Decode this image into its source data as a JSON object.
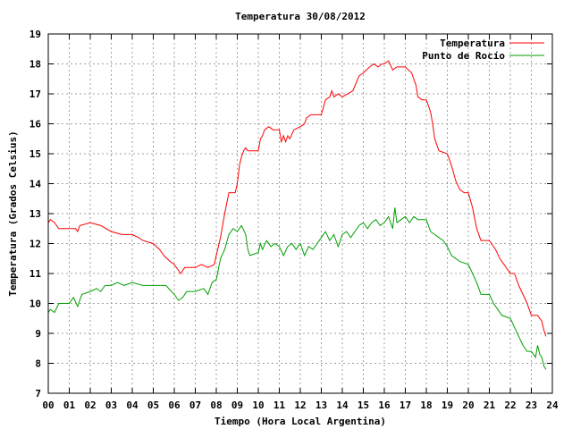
{
  "chart_data": {
    "type": "line",
    "title": "Temperatura 30/08/2012",
    "xlabel": "Tiempo (Hora Local Argentina)",
    "ylabel": "Temperatura (Grados Celsius)",
    "xlim": [
      0,
      24
    ],
    "ylim": [
      7,
      19
    ],
    "grid": true,
    "legend_position": "top-right",
    "x_ticks": [
      {
        "v": 0,
        "label": "00"
      },
      {
        "v": 1,
        "label": "01"
      },
      {
        "v": 2,
        "label": "02"
      },
      {
        "v": 3,
        "label": "03"
      },
      {
        "v": 4,
        "label": "04"
      },
      {
        "v": 5,
        "label": "05"
      },
      {
        "v": 6,
        "label": "06"
      },
      {
        "v": 7,
        "label": "07"
      },
      {
        "v": 8,
        "label": "08"
      },
      {
        "v": 9,
        "label": "09"
      },
      {
        "v": 10,
        "label": "10"
      },
      {
        "v": 11,
        "label": "11"
      },
      {
        "v": 12,
        "label": "12"
      },
      {
        "v": 13,
        "label": "13"
      },
      {
        "v": 14,
        "label": "14"
      },
      {
        "v": 15,
        "label": "15"
      },
      {
        "v": 16,
        "label": "16"
      },
      {
        "v": 17,
        "label": "17"
      },
      {
        "v": 18,
        "label": "18"
      },
      {
        "v": 19,
        "label": "19"
      },
      {
        "v": 20,
        "label": "20"
      },
      {
        "v": 21,
        "label": "21"
      },
      {
        "v": 22,
        "label": "22"
      },
      {
        "v": 23,
        "label": "23"
      },
      {
        "v": 24,
        "label": "24"
      }
    ],
    "y_ticks": [
      {
        "v": 7,
        "label": "7"
      },
      {
        "v": 8,
        "label": "8"
      },
      {
        "v": 9,
        "label": "9"
      },
      {
        "v": 10,
        "label": "10"
      },
      {
        "v": 11,
        "label": "11"
      },
      {
        "v": 12,
        "label": "12"
      },
      {
        "v": 13,
        "label": "13"
      },
      {
        "v": 14,
        "label": "14"
      },
      {
        "v": 15,
        "label": "15"
      },
      {
        "v": 16,
        "label": "16"
      },
      {
        "v": 17,
        "label": "17"
      },
      {
        "v": 18,
        "label": "18"
      },
      {
        "v": 19,
        "label": "19"
      }
    ],
    "series": [
      {
        "name": "Temperatura",
        "color": "#ff0000",
        "points": [
          [
            0.0,
            12.7
          ],
          [
            0.1,
            12.8
          ],
          [
            0.3,
            12.7
          ],
          [
            0.5,
            12.5
          ],
          [
            1.0,
            12.5
          ],
          [
            1.3,
            12.5
          ],
          [
            1.4,
            12.4
          ],
          [
            1.5,
            12.6
          ],
          [
            2.0,
            12.7
          ],
          [
            2.5,
            12.6
          ],
          [
            3.0,
            12.4
          ],
          [
            3.5,
            12.3
          ],
          [
            4.0,
            12.3
          ],
          [
            4.3,
            12.2
          ],
          [
            4.5,
            12.1
          ],
          [
            5.0,
            12.0
          ],
          [
            5.3,
            11.8
          ],
          [
            5.5,
            11.6
          ],
          [
            5.8,
            11.4
          ],
          [
            6.0,
            11.3
          ],
          [
            6.2,
            11.1
          ],
          [
            6.3,
            11.0
          ],
          [
            6.5,
            11.2
          ],
          [
            7.0,
            11.2
          ],
          [
            7.3,
            11.3
          ],
          [
            7.6,
            11.2
          ],
          [
            7.9,
            11.3
          ],
          [
            8.0,
            11.6
          ],
          [
            8.2,
            12.2
          ],
          [
            8.4,
            13.0
          ],
          [
            8.6,
            13.7
          ],
          [
            8.9,
            13.7
          ],
          [
            9.0,
            14.0
          ],
          [
            9.1,
            14.6
          ],
          [
            9.2,
            14.9
          ],
          [
            9.3,
            15.1
          ],
          [
            9.4,
            15.2
          ],
          [
            9.5,
            15.1
          ],
          [
            10.0,
            15.1
          ],
          [
            10.1,
            15.5
          ],
          [
            10.2,
            15.6
          ],
          [
            10.3,
            15.8
          ],
          [
            10.5,
            15.9
          ],
          [
            10.7,
            15.8
          ],
          [
            11.0,
            15.8
          ],
          [
            11.1,
            15.4
          ],
          [
            11.2,
            15.6
          ],
          [
            11.3,
            15.4
          ],
          [
            11.4,
            15.6
          ],
          [
            11.5,
            15.5
          ],
          [
            11.7,
            15.8
          ],
          [
            12.0,
            15.9
          ],
          [
            12.2,
            16.0
          ],
          [
            12.3,
            16.2
          ],
          [
            12.5,
            16.3
          ],
          [
            13.0,
            16.3
          ],
          [
            13.2,
            16.8
          ],
          [
            13.4,
            16.9
          ],
          [
            13.5,
            17.1
          ],
          [
            13.6,
            16.9
          ],
          [
            13.8,
            17.0
          ],
          [
            14.0,
            16.9
          ],
          [
            14.5,
            17.1
          ],
          [
            14.8,
            17.6
          ],
          [
            15.0,
            17.7
          ],
          [
            15.3,
            17.9
          ],
          [
            15.5,
            18.0
          ],
          [
            15.7,
            17.9
          ],
          [
            15.9,
            18.0
          ],
          [
            16.0,
            18.0
          ],
          [
            16.2,
            18.1
          ],
          [
            16.4,
            17.8
          ],
          [
            16.6,
            17.9
          ],
          [
            17.0,
            17.9
          ],
          [
            17.3,
            17.7
          ],
          [
            17.5,
            17.3
          ],
          [
            17.6,
            16.9
          ],
          [
            17.8,
            16.8
          ],
          [
            18.0,
            16.8
          ],
          [
            18.2,
            16.4
          ],
          [
            18.3,
            16.0
          ],
          [
            18.4,
            15.5
          ],
          [
            18.6,
            15.1
          ],
          [
            19.0,
            15.0
          ],
          [
            19.2,
            14.6
          ],
          [
            19.4,
            14.1
          ],
          [
            19.6,
            13.8
          ],
          [
            19.8,
            13.7
          ],
          [
            20.0,
            13.7
          ],
          [
            20.2,
            13.2
          ],
          [
            20.4,
            12.5
          ],
          [
            20.6,
            12.1
          ],
          [
            21.0,
            12.1
          ],
          [
            21.3,
            11.8
          ],
          [
            21.5,
            11.5
          ],
          [
            21.7,
            11.3
          ],
          [
            22.0,
            11.0
          ],
          [
            22.2,
            11.0
          ],
          [
            22.4,
            10.6
          ],
          [
            22.6,
            10.3
          ],
          [
            22.8,
            10.0
          ],
          [
            23.0,
            9.6
          ],
          [
            23.3,
            9.6
          ],
          [
            23.5,
            9.4
          ],
          [
            23.6,
            9.1
          ],
          [
            23.7,
            8.9
          ]
        ]
      },
      {
        "name": "Punto de Rocío",
        "color": "#00a000",
        "points": [
          [
            0.0,
            9.7
          ],
          [
            0.1,
            9.8
          ],
          [
            0.3,
            9.7
          ],
          [
            0.5,
            10.0
          ],
          [
            1.0,
            10.0
          ],
          [
            1.2,
            10.2
          ],
          [
            1.4,
            9.9
          ],
          [
            1.6,
            10.3
          ],
          [
            2.0,
            10.4
          ],
          [
            2.3,
            10.5
          ],
          [
            2.5,
            10.4
          ],
          [
            2.7,
            10.6
          ],
          [
            3.0,
            10.6
          ],
          [
            3.3,
            10.7
          ],
          [
            3.6,
            10.6
          ],
          [
            4.0,
            10.7
          ],
          [
            4.5,
            10.6
          ],
          [
            5.0,
            10.6
          ],
          [
            5.6,
            10.6
          ],
          [
            6.0,
            10.3
          ],
          [
            6.2,
            10.1
          ],
          [
            6.4,
            10.2
          ],
          [
            6.6,
            10.4
          ],
          [
            7.0,
            10.4
          ],
          [
            7.4,
            10.5
          ],
          [
            7.6,
            10.3
          ],
          [
            7.8,
            10.7
          ],
          [
            8.0,
            10.8
          ],
          [
            8.2,
            11.5
          ],
          [
            8.4,
            11.8
          ],
          [
            8.6,
            12.3
          ],
          [
            8.8,
            12.5
          ],
          [
            9.0,
            12.4
          ],
          [
            9.2,
            12.6
          ],
          [
            9.4,
            12.3
          ],
          [
            9.5,
            11.8
          ],
          [
            9.6,
            11.6
          ],
          [
            10.0,
            11.7
          ],
          [
            10.1,
            12.0
          ],
          [
            10.2,
            11.8
          ],
          [
            10.4,
            12.1
          ],
          [
            10.6,
            11.9
          ],
          [
            10.8,
            12.0
          ],
          [
            11.0,
            11.9
          ],
          [
            11.2,
            11.6
          ],
          [
            11.4,
            11.9
          ],
          [
            11.6,
            12.0
          ],
          [
            11.8,
            11.8
          ],
          [
            12.0,
            12.0
          ],
          [
            12.2,
            11.6
          ],
          [
            12.4,
            11.9
          ],
          [
            12.6,
            11.8
          ],
          [
            12.8,
            12.0
          ],
          [
            13.0,
            12.2
          ],
          [
            13.2,
            12.4
          ],
          [
            13.4,
            12.1
          ],
          [
            13.6,
            12.3
          ],
          [
            13.8,
            11.9
          ],
          [
            14.0,
            12.3
          ],
          [
            14.2,
            12.4
          ],
          [
            14.4,
            12.2
          ],
          [
            14.6,
            12.4
          ],
          [
            14.8,
            12.6
          ],
          [
            15.0,
            12.7
          ],
          [
            15.2,
            12.5
          ],
          [
            15.4,
            12.7
          ],
          [
            15.6,
            12.8
          ],
          [
            15.8,
            12.6
          ],
          [
            16.0,
            12.7
          ],
          [
            16.2,
            12.9
          ],
          [
            16.4,
            12.5
          ],
          [
            16.5,
            13.2
          ],
          [
            16.6,
            12.7
          ],
          [
            16.8,
            12.8
          ],
          [
            17.0,
            12.9
          ],
          [
            17.2,
            12.7
          ],
          [
            17.4,
            12.9
          ],
          [
            17.6,
            12.8
          ],
          [
            18.0,
            12.8
          ],
          [
            18.2,
            12.4
          ],
          [
            18.4,
            12.3
          ],
          [
            18.6,
            12.2
          ],
          [
            18.8,
            12.1
          ],
          [
            19.0,
            11.9
          ],
          [
            19.2,
            11.6
          ],
          [
            19.4,
            11.5
          ],
          [
            19.6,
            11.4
          ],
          [
            20.0,
            11.3
          ],
          [
            20.2,
            11.0
          ],
          [
            20.4,
            10.7
          ],
          [
            20.6,
            10.3
          ],
          [
            21.0,
            10.3
          ],
          [
            21.2,
            10.0
          ],
          [
            21.4,
            9.8
          ],
          [
            21.6,
            9.6
          ],
          [
            22.0,
            9.5
          ],
          [
            22.2,
            9.2
          ],
          [
            22.4,
            8.9
          ],
          [
            22.6,
            8.6
          ],
          [
            22.8,
            8.4
          ],
          [
            23.0,
            8.4
          ],
          [
            23.2,
            8.2
          ],
          [
            23.3,
            8.6
          ],
          [
            23.4,
            8.3
          ],
          [
            23.5,
            8.2
          ],
          [
            23.6,
            7.9
          ],
          [
            23.7,
            7.8
          ]
        ]
      }
    ]
  }
}
